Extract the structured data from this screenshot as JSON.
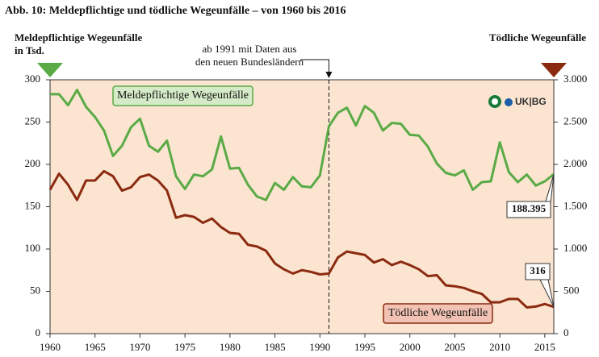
{
  "chart_data": {
    "type": "line",
    "title": "Abb. 10:  Meldepflichtige und tödliche Wegeunfälle – von 1960 bis 2016",
    "y_label": [
      "Meldepflichtige Wegeunfälle",
      "in Tsd."
    ],
    "y2_label": "Tödliche Wegeunfälle",
    "logo": "UK|BG",
    "vline": {
      "x": 1991,
      "label": [
        "ab 1991 mit Daten aus",
        "den neuen Bundesländern"
      ]
    },
    "x": [
      1960,
      1961,
      1962,
      1963,
      1964,
      1965,
      1966,
      1967,
      1968,
      1969,
      1970,
      1971,
      1972,
      1973,
      1974,
      1975,
      1976,
      1977,
      1978,
      1979,
      1980,
      1981,
      1982,
      1983,
      1984,
      1985,
      1986,
      1987,
      1988,
      1989,
      1990,
      1991,
      1992,
      1993,
      1994,
      1995,
      1996,
      1997,
      1998,
      1999,
      2000,
      2001,
      2002,
      2003,
      2004,
      2005,
      2006,
      2007,
      2008,
      2009,
      2010,
      2011,
      2012,
      2013,
      2014,
      2015,
      2016
    ],
    "xlim": [
      1960,
      2016
    ],
    "xticks": [
      1960,
      1965,
      1970,
      1975,
      1980,
      1985,
      1990,
      1995,
      2000,
      2005,
      2010,
      2015
    ],
    "ylim": [
      0,
      300
    ],
    "yticks": [
      0,
      50,
      100,
      150,
      200,
      250,
      300
    ],
    "y2lim": [
      0,
      3000
    ],
    "y2ticks": [
      0,
      {
        "value": 500,
        "label": "500"
      },
      {
        "value": 1000,
        "label": "1.000"
      },
      {
        "value": 1500,
        "label": "1.500"
      },
      {
        "value": 2000,
        "label": "2.000"
      },
      {
        "value": 2500,
        "label": "2.500"
      },
      {
        "value": 3000,
        "label": "3.000"
      }
    ],
    "series": [
      {
        "name": "Meldepflichtige Wegeunfälle",
        "color": "#5aaa46",
        "values": [
          283,
          283,
          270,
          288,
          268,
          256,
          240,
          210,
          222,
          244,
          254,
          222,
          215,
          228,
          186,
          171,
          188,
          186,
          194,
          233,
          195,
          196,
          176,
          162,
          158,
          178,
          170,
          185,
          174,
          173,
          187,
          245,
          261,
          267,
          246,
          269,
          261,
          240,
          249,
          248,
          235,
          234,
          221,
          201,
          190,
          187,
          193,
          170,
          179,
          180,
          226,
          191,
          179,
          188,
          175,
          180,
          188.395
        ]
      },
      {
        "name": "Tödliche Wegeunfälle",
        "color": "#8b2a10",
        "axis": "y2",
        "values": [
          1700,
          1890,
          1760,
          1580,
          1810,
          1810,
          1920,
          1860,
          1690,
          1730,
          1850,
          1880,
          1810,
          1690,
          1370,
          1400,
          1380,
          1310,
          1360,
          1260,
          1190,
          1180,
          1050,
          1030,
          980,
          830,
          760,
          710,
          750,
          730,
          700,
          710,
          900,
          970,
          950,
          930,
          840,
          880,
          810,
          850,
          810,
          760,
          680,
          690,
          570,
          560,
          540,
          500,
          470,
          370,
          370,
          410,
          410,
          310,
          320,
          350,
          316
        ]
      }
    ]
  }
}
